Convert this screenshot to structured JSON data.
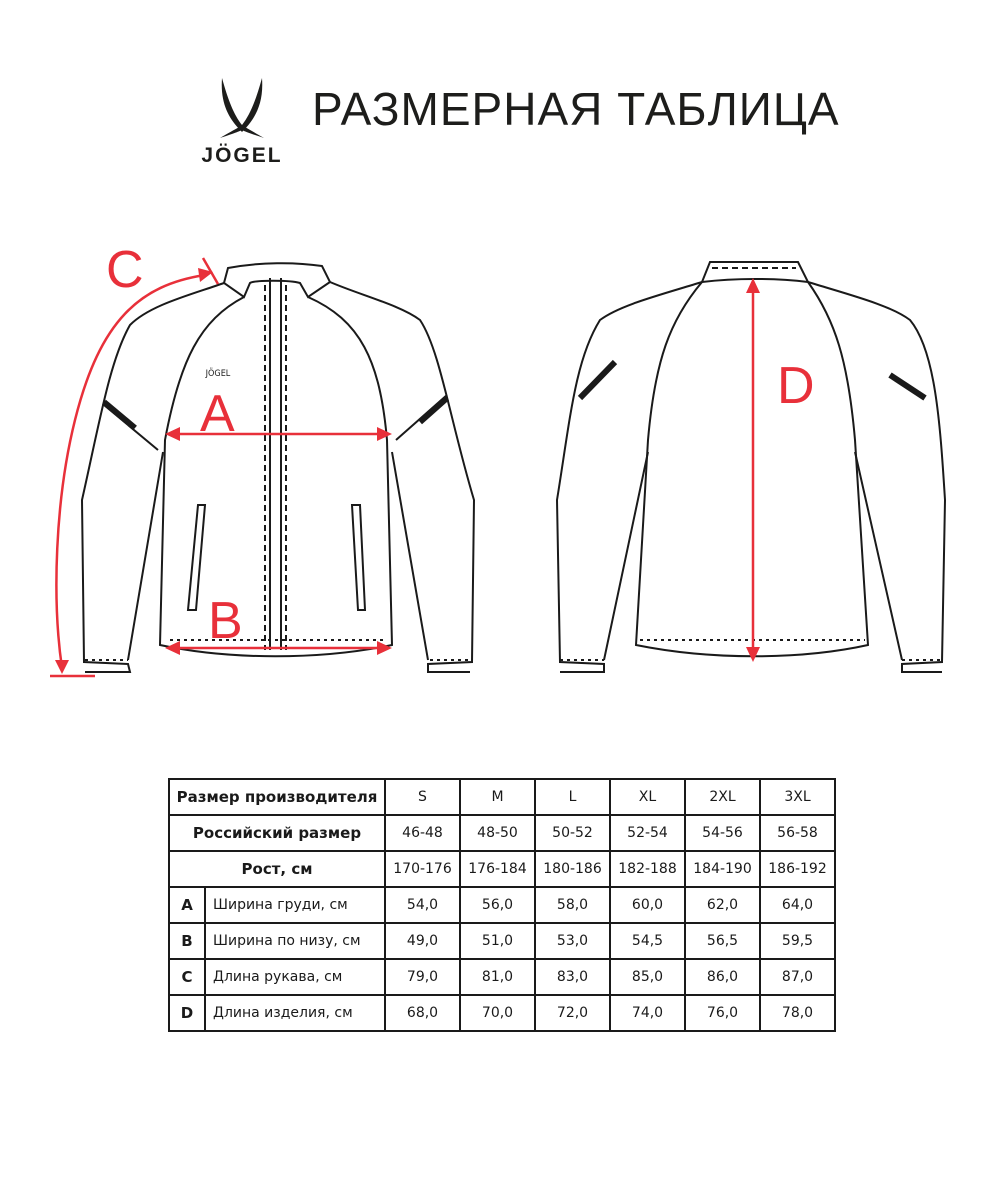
{
  "brand": {
    "name": "JÖGEL"
  },
  "title": "РАЗМЕРНАЯ ТАБЛИЦА",
  "diagram_labels": {
    "A": "A",
    "B": "B",
    "C": "C",
    "D": "D"
  },
  "colors": {
    "measure": "#e8303a",
    "line": "#1a1a1a"
  },
  "table": {
    "header": {
      "label": "Размер производителя",
      "sizes": [
        "S",
        "M",
        "L",
        "XL",
        "2XL",
        "3XL"
      ]
    },
    "russian": {
      "label": "Российский размер",
      "values": [
        "46-48",
        "48-50",
        "50-52",
        "52-54",
        "54-56",
        "56-58"
      ]
    },
    "height": {
      "label": "Рост, см",
      "values": [
        "170-176",
        "176-184",
        "180-186",
        "182-188",
        "184-190",
        "186-192"
      ]
    },
    "rows": [
      {
        "letter": "A",
        "label": "Ширина груди, см",
        "values": [
          "54,0",
          "56,0",
          "58,0",
          "60,0",
          "62,0",
          "64,0"
        ]
      },
      {
        "letter": "B",
        "label": "Ширина по низу, см",
        "values": [
          "49,0",
          "51,0",
          "53,0",
          "54,5",
          "56,5",
          "59,5"
        ]
      },
      {
        "letter": "C",
        "label": "Длина рукава, см",
        "values": [
          "79,0",
          "81,0",
          "83,0",
          "85,0",
          "86,0",
          "87,0"
        ]
      },
      {
        "letter": "D",
        "label": "Длина изделия, см",
        "values": [
          "68,0",
          "70,0",
          "72,0",
          "74,0",
          "76,0",
          "78,0"
        ]
      }
    ]
  }
}
